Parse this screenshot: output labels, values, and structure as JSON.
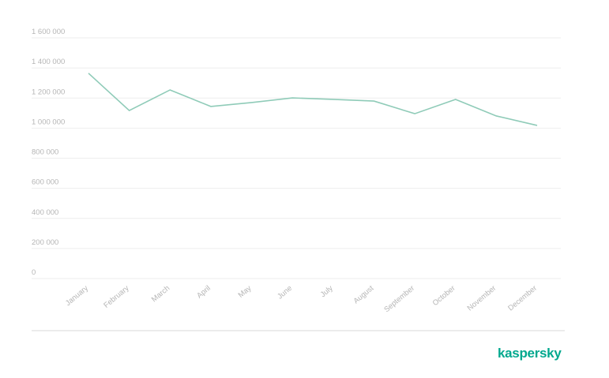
{
  "chart_data": {
    "type": "line",
    "categories": [
      "January",
      "February",
      "March",
      "April",
      "May",
      "June",
      "July",
      "August",
      "September",
      "October",
      "November",
      "December"
    ],
    "values": [
      1365000,
      1117000,
      1254000,
      1144000,
      1170000,
      1201000,
      1191000,
      1180000,
      1096000,
      1191000,
      1081000,
      1018000
    ],
    "color": "#8fcbb8",
    "ylim": [
      0,
      1600000
    ],
    "yticks": [
      0,
      {
        "value": 200000,
        "label": "200 000"
      },
      {
        "value": 400000,
        "label": "400 000"
      },
      {
        "value": 600000,
        "label": "600 000"
      },
      {
        "value": 800000,
        "label": "800 000"
      },
      {
        "value": 1000000,
        "label": "1 000 000"
      },
      {
        "value": 1200000,
        "label": "1 200 000"
      },
      {
        "value": 1400000,
        "label": "1 400 000"
      },
      {
        "value": 1600000,
        "label": "1 600 000"
      }
    ],
    "grid": true
  },
  "brand": "kaspersky"
}
